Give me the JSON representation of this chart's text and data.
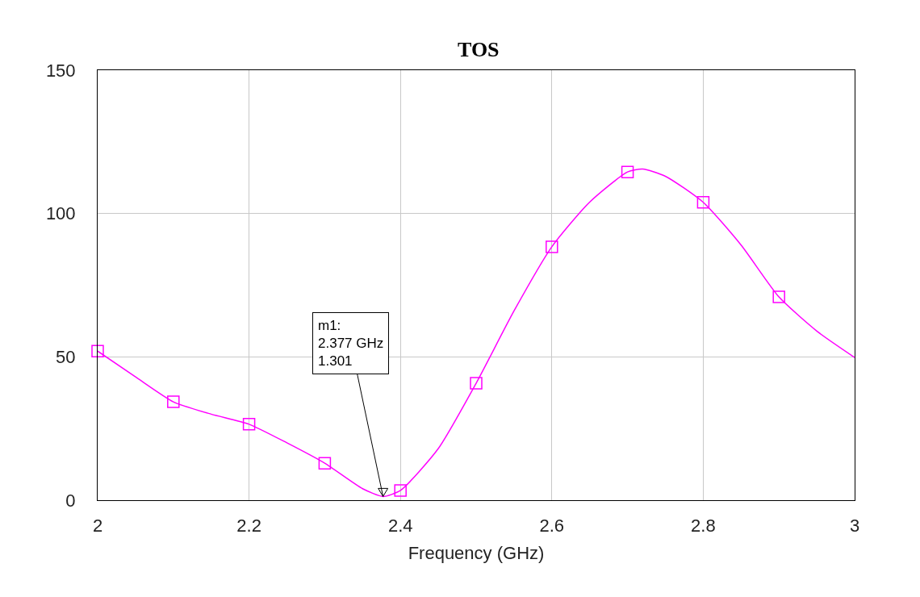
{
  "chart_data": {
    "type": "line",
    "title": "TOS",
    "xlabel": "Frequency (GHz)",
    "xlim": [
      2,
      3
    ],
    "xticks": [
      2,
      2.2,
      2.4,
      2.6,
      2.8,
      3
    ],
    "ylim": [
      0,
      150
    ],
    "yticks": [
      0,
      50,
      100,
      150
    ],
    "grid": true,
    "series": [
      {
        "color": "#ff00ff",
        "marker": "none",
        "line_style": "solid",
        "x": [
          2,
          2.05,
          2.1,
          2.15,
          2.2,
          2.25,
          2.3,
          2.35,
          2.377,
          2.4,
          2.45,
          2.5,
          2.55,
          2.6,
          2.65,
          2.7,
          2.72,
          2.75,
          2.8,
          2.85,
          2.9,
          2.95,
          3
        ],
        "values": [
          52,
          43,
          34.3,
          30,
          26.5,
          20,
          12.9,
          4,
          1.301,
          3.4,
          18,
          40.8,
          66,
          88.4,
          104,
          114.5,
          115.5,
          113,
          103.9,
          89,
          70.9,
          59,
          49.8
        ]
      },
      {
        "type": "scatter",
        "color": "#ff00ff",
        "marker": "square",
        "x": [
          2,
          2.1,
          2.2,
          2.3,
          2.4,
          2.5,
          2.6,
          2.7,
          2.8,
          2.9
        ],
        "values": [
          52,
          34.3,
          26.5,
          12.9,
          3.4,
          40.8,
          88.4,
          114.5,
          103.9,
          70.9
        ]
      }
    ],
    "annotations": [
      {
        "text": "m1:\n2.377 GHz\n1.301",
        "x": 2.377,
        "y": 1.301
      }
    ]
  }
}
